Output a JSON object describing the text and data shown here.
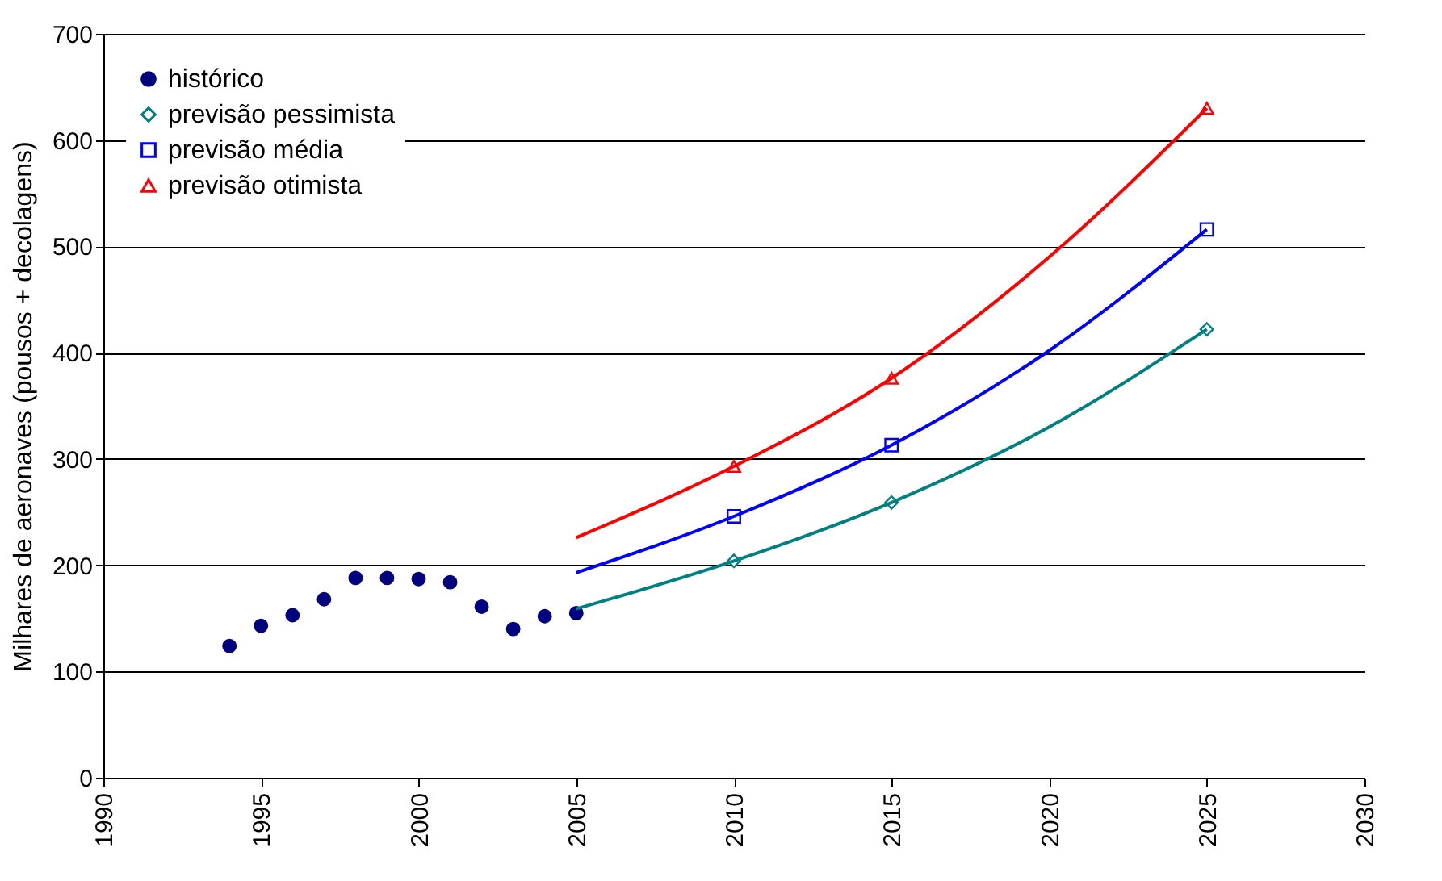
{
  "chart_data": {
    "type": "scatter",
    "ylabel": "Milhares de aeronaves (pousos + decolagens)",
    "xlim": [
      1990,
      2030
    ],
    "xticks": [
      1990,
      1995,
      2000,
      2005,
      2010,
      2015,
      2020,
      2025,
      2030
    ],
    "ylim": [
      0,
      700
    ],
    "yticks": [
      0,
      100,
      200,
      300,
      400,
      500,
      600,
      700
    ],
    "grid": "y",
    "legend": "top left",
    "series": [
      {
        "name": "histórico",
        "color": "#000080",
        "marker": "circle",
        "x": [
          1994,
          1995,
          1996,
          1997,
          1998,
          1999,
          2000,
          2001,
          2002,
          2003,
          2004,
          2005
        ],
        "values": [
          124,
          143,
          153,
          168,
          188,
          188,
          187,
          184,
          161,
          140,
          152,
          155
        ]
      },
      {
        "name": "previsão pessimista",
        "color": "#008080",
        "marker": "diamond",
        "x": [
          2010,
          2015,
          2025
        ],
        "values": [
          204,
          259,
          422
        ]
      },
      {
        "name": "previsão média",
        "color": "#0000ff",
        "marker": "square",
        "x": [
          2010,
          2015,
          2025
        ],
        "values": [
          246,
          313,
          516
        ]
      },
      {
        "name": "previsão otimista",
        "color": "#ff0000",
        "marker": "triangle",
        "x": [
          2010,
          2015,
          2025
        ],
        "values": [
          293,
          376,
          630
        ]
      },
      {
        "type": "line",
        "color": "#008080",
        "x": [
          2005,
          2010,
          2015,
          2020,
          2025
        ],
        "values": [
          159,
          204,
          259,
          330,
          422
        ]
      },
      {
        "type": "line",
        "color": "#0000ff",
        "x": [
          2005,
          2010,
          2015,
          2020,
          2025
        ],
        "values": [
          193,
          246,
          313,
          402,
          516
        ]
      },
      {
        "type": "line",
        "color": "#ff0000",
        "x": [
          2005,
          2010,
          2015,
          2020,
          2025
        ],
        "values": [
          226,
          293,
          376,
          490,
          630
        ]
      }
    ]
  }
}
